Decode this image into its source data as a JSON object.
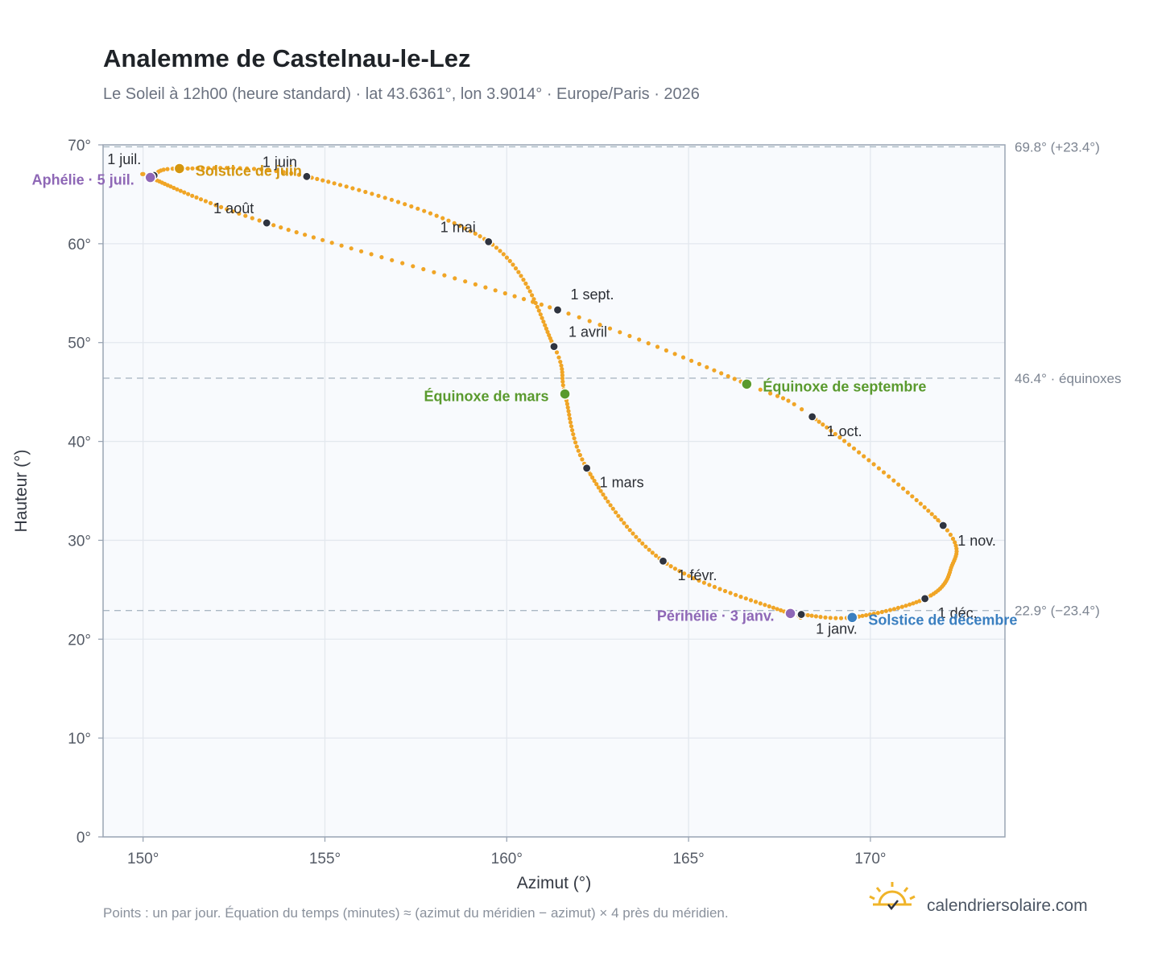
{
  "header": {
    "title": "Analemme de Castelnau-le-Lez",
    "subtitle": "Le Soleil à 12h00 (heure standard) · lat 43.6361°, lon 3.9014° · Europe/Paris · 2026"
  },
  "footer": {
    "note": "Points : un par jour. Équation du temps (minutes) ≈ (azimut du méridien − azimut) × 4 près du méridien.",
    "brand": "calendriersolaire.com",
    "brand_icon": "sun-check-icon"
  },
  "colors": {
    "curve": "#f0a526",
    "month_marker": "#2f3440",
    "equinox": "#5a9a2e",
    "june_solstice": "#d4960f",
    "december_solstice": "#3a7fc0",
    "apsis": "#8e67b6",
    "plot_bg": "#f8fafd",
    "grid": "#e3e8ee",
    "ref_line": "#aab8c4"
  },
  "chart_data": {
    "type": "scatter",
    "xlabel": "Azimut (°)",
    "ylabel": "Hauteur (°)",
    "xlim": [
      148.9,
      173.7
    ],
    "ylim": [
      0,
      70
    ],
    "x_ticks": [
      150,
      155,
      160,
      165,
      170
    ],
    "x_tick_labels": [
      "150°",
      "155°",
      "160°",
      "165°",
      "170°"
    ],
    "y_ticks": [
      0,
      10,
      20,
      30,
      40,
      50,
      60,
      70
    ],
    "y_tick_labels": [
      "0°",
      "10°",
      "20°",
      "30°",
      "40°",
      "50°",
      "60°",
      "70°"
    ],
    "grid": true,
    "reference_lines": [
      {
        "y": 69.8,
        "label": "69.8° (+23.4°)"
      },
      {
        "y": 46.4,
        "label": "46.4° · équinoxes"
      },
      {
        "y": 22.9,
        "label": "22.9° (−23.4°)"
      }
    ],
    "curve_note": "un point par jour",
    "monthly": [
      {
        "label": "1 janv.",
        "az": 168.1,
        "alt": 22.5
      },
      {
        "label": "1 févr.",
        "az": 164.3,
        "alt": 27.9
      },
      {
        "label": "1 mars",
        "az": 162.2,
        "alt": 37.3
      },
      {
        "label": "1 avril",
        "az": 161.3,
        "alt": 49.6
      },
      {
        "label": "1 mai",
        "az": 159.5,
        "alt": 60.2
      },
      {
        "label": "1 juin",
        "az": 154.5,
        "alt": 66.8
      },
      {
        "label": "1 juil.",
        "az": 150.3,
        "alt": 66.9
      },
      {
        "label": "1 août",
        "az": 153.4,
        "alt": 62.1
      },
      {
        "label": "1 sept.",
        "az": 161.4,
        "alt": 53.3
      },
      {
        "label": "1 oct.",
        "az": 168.4,
        "alt": 42.5
      },
      {
        "label": "1 nov.",
        "az": 172.0,
        "alt": 31.5
      },
      {
        "label": "1 déc.",
        "az": 171.5,
        "alt": 24.1
      }
    ],
    "events": [
      {
        "label": "Solstice de juin",
        "az": 151.0,
        "alt": 67.6,
        "kind": "june_solstice"
      },
      {
        "label": "Aphélie · 5 juil.",
        "az": 150.2,
        "alt": 66.7,
        "kind": "apsis"
      },
      {
        "label": "Équinoxe de mars",
        "az": 161.6,
        "alt": 44.8,
        "kind": "equinox"
      },
      {
        "label": "Équinoxe de septembre",
        "az": 166.6,
        "alt": 45.8,
        "kind": "equinox"
      },
      {
        "label": "Périhélie · 3 janv.",
        "az": 167.8,
        "alt": 22.6,
        "kind": "apsis"
      },
      {
        "label": "Solstice de décembre",
        "az": 169.5,
        "alt": 22.2,
        "kind": "december_solstice"
      }
    ]
  }
}
